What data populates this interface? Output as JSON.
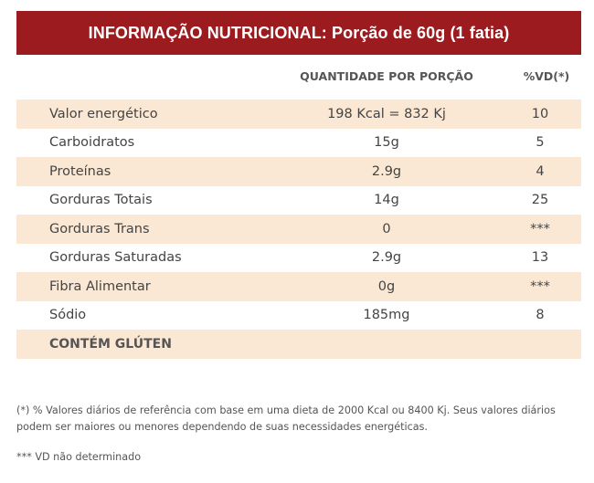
{
  "header": {
    "title": "INFORMAÇÃO NUTRICIONAL: Porção de 60g (1 fatia)"
  },
  "columns": {
    "quantity": "QUANTIDADE POR PORÇÃO",
    "vd": "%VD(*)"
  },
  "rows": [
    {
      "name": "Valor energético",
      "quantity": "198 Kcal = 832 Kj",
      "vd": "10"
    },
    {
      "name": "Carboidratos",
      "quantity": "15g",
      "vd": "5"
    },
    {
      "name": "Proteínas",
      "quantity": "2.9g",
      "vd": "4"
    },
    {
      "name": "Gorduras Totais",
      "quantity": "14g",
      "vd": "25"
    },
    {
      "name": "Gorduras Trans",
      "quantity": "0",
      "vd": "***"
    },
    {
      "name": "Gorduras Saturadas",
      "quantity": "2.9g",
      "vd": "13"
    },
    {
      "name": "Fibra Alimentar",
      "quantity": "0g",
      "vd": "***"
    },
    {
      "name": "Sódio",
      "quantity": "185mg",
      "vd": "8"
    }
  ],
  "gluten_note": "CONTÉM GLÚTEN",
  "footnotes": {
    "vd_reference": "(*) % Valores diários de referência com base em uma dieta de 2000 Kcal ou 8400 Kj. Seus valores diários podem ser maiores ou menores dependendo de suas necessidades energéticas.",
    "not_determined": "*** VD não determinado"
  },
  "colors": {
    "header_bg": "#9b1b1f",
    "stripe_bg": "#fbe8d4"
  }
}
